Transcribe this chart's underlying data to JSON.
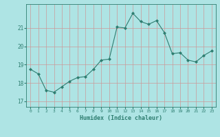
{
  "x": [
    0,
    1,
    2,
    3,
    4,
    5,
    6,
    7,
    8,
    9,
    10,
    11,
    12,
    13,
    14,
    15,
    16,
    17,
    18,
    19,
    20,
    21,
    22,
    23
  ],
  "y": [
    18.75,
    18.5,
    17.6,
    17.5,
    17.8,
    18.1,
    18.3,
    18.35,
    18.75,
    19.25,
    19.3,
    21.05,
    21.0,
    21.8,
    21.35,
    21.2,
    21.4,
    20.75,
    19.6,
    19.65,
    19.25,
    19.15,
    19.5,
    19.75
  ],
  "line_color": "#2e7d70",
  "marker": "D",
  "marker_size": 2.0,
  "bg_color": "#aee4e4",
  "grid_color": "#cc9999",
  "xlabel": "Humidex (Indice chaleur)",
  "yticks": [
    17,
    18,
    19,
    20,
    21
  ],
  "xticks": [
    0,
    1,
    2,
    3,
    4,
    5,
    6,
    7,
    8,
    9,
    10,
    11,
    12,
    13,
    14,
    15,
    16,
    17,
    18,
    19,
    20,
    21,
    22,
    23
  ],
  "ylim": [
    16.7,
    22.3
  ],
  "xlim": [
    -0.5,
    23.5
  ]
}
